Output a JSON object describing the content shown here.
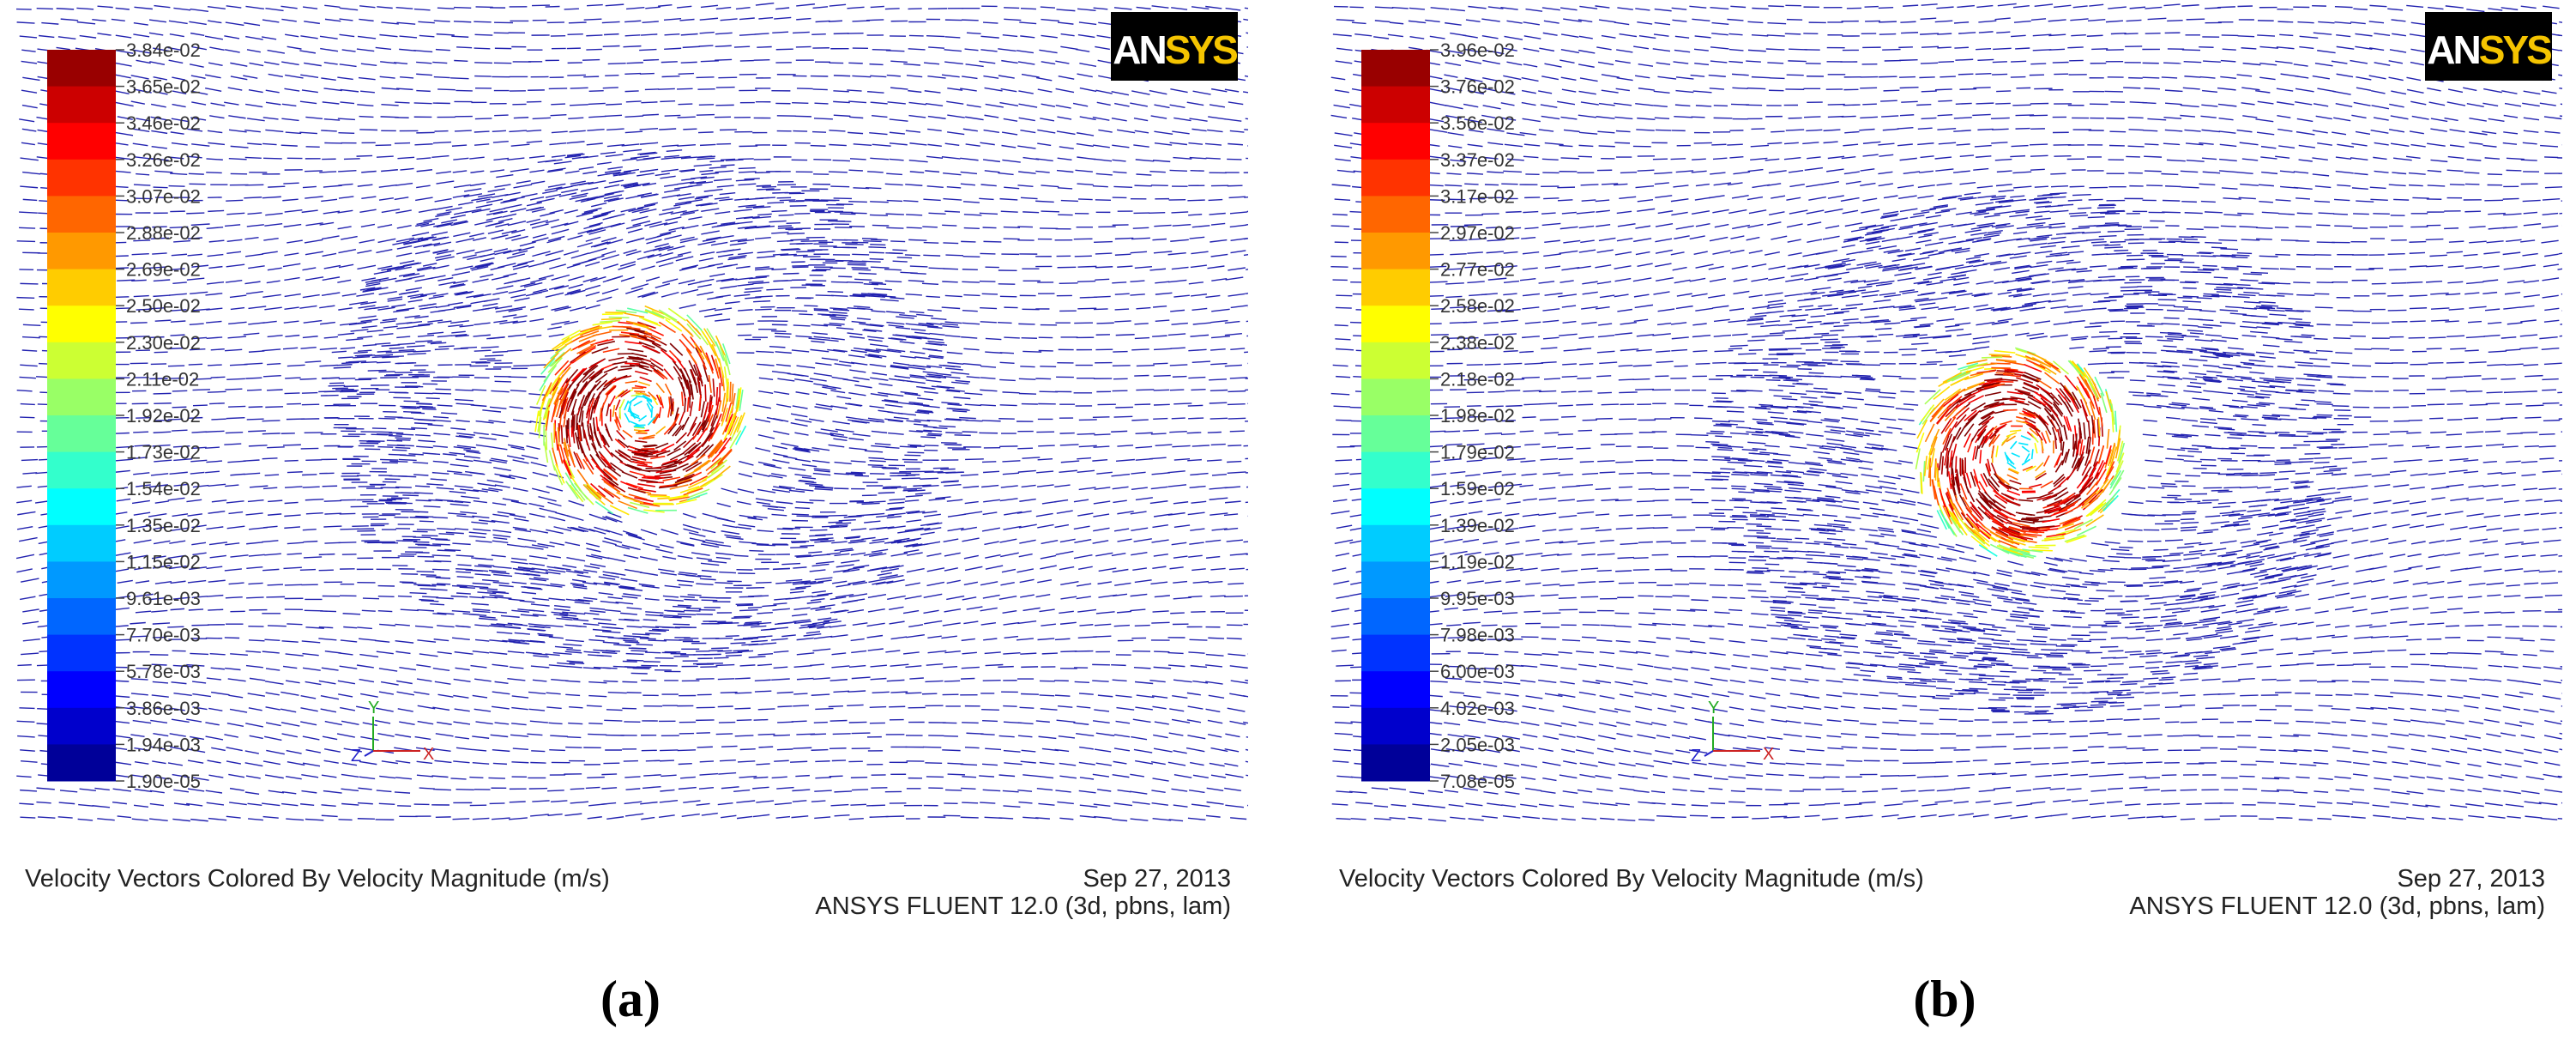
{
  "panels": [
    {
      "label": "(a)",
      "logo": {
        "an": "AN",
        "sys": "SYS"
      },
      "colorbar": [
        "3.84e-02",
        "3.65e-02",
        "3.46e-02",
        "3.26e-02",
        "3.07e-02",
        "2.88e-02",
        "2.69e-02",
        "2.50e-02",
        "2.30e-02",
        "2.11e-02",
        "1.92e-02",
        "1.73e-02",
        "1.54e-02",
        "1.35e-02",
        "1.15e-02",
        "9.61e-03",
        "7.70e-03",
        "5.78e-03",
        "3.86e-03",
        "1.94e-03",
        "1.90e-05"
      ],
      "triad": {
        "y": "Y",
        "z": "Z",
        "x": "X"
      },
      "caption": "Velocity Vectors Colored By Velocity Magnitude (m/s)",
      "date": "Sep 27, 2013",
      "software": "ANSYS FLUENT 12.0 (3d, pbns, lam)"
    },
    {
      "label": "(b)",
      "logo": {
        "an": "AN",
        "sys": "SYS"
      },
      "colorbar": [
        "3.96e-02",
        "3.76e-02",
        "3.56e-02",
        "3.37e-02",
        "3.17e-02",
        "2.97e-02",
        "2.77e-02",
        "2.58e-02",
        "2.38e-02",
        "2.18e-02",
        "1.98e-02",
        "1.79e-02",
        "1.59e-02",
        "1.39e-02",
        "1.19e-02",
        "9.95e-03",
        "7.98e-03",
        "6.00e-03",
        "4.02e-03",
        "2.05e-03",
        "7.08e-05"
      ],
      "triad": {
        "y": "Y",
        "z": "Z",
        "x": "X"
      },
      "caption": "Velocity Vectors Colored By Velocity Magnitude (m/s)",
      "date": "Sep 27, 2013",
      "software": "ANSYS FLUENT 12.0 (3d, pbns, lam)"
    }
  ]
}
